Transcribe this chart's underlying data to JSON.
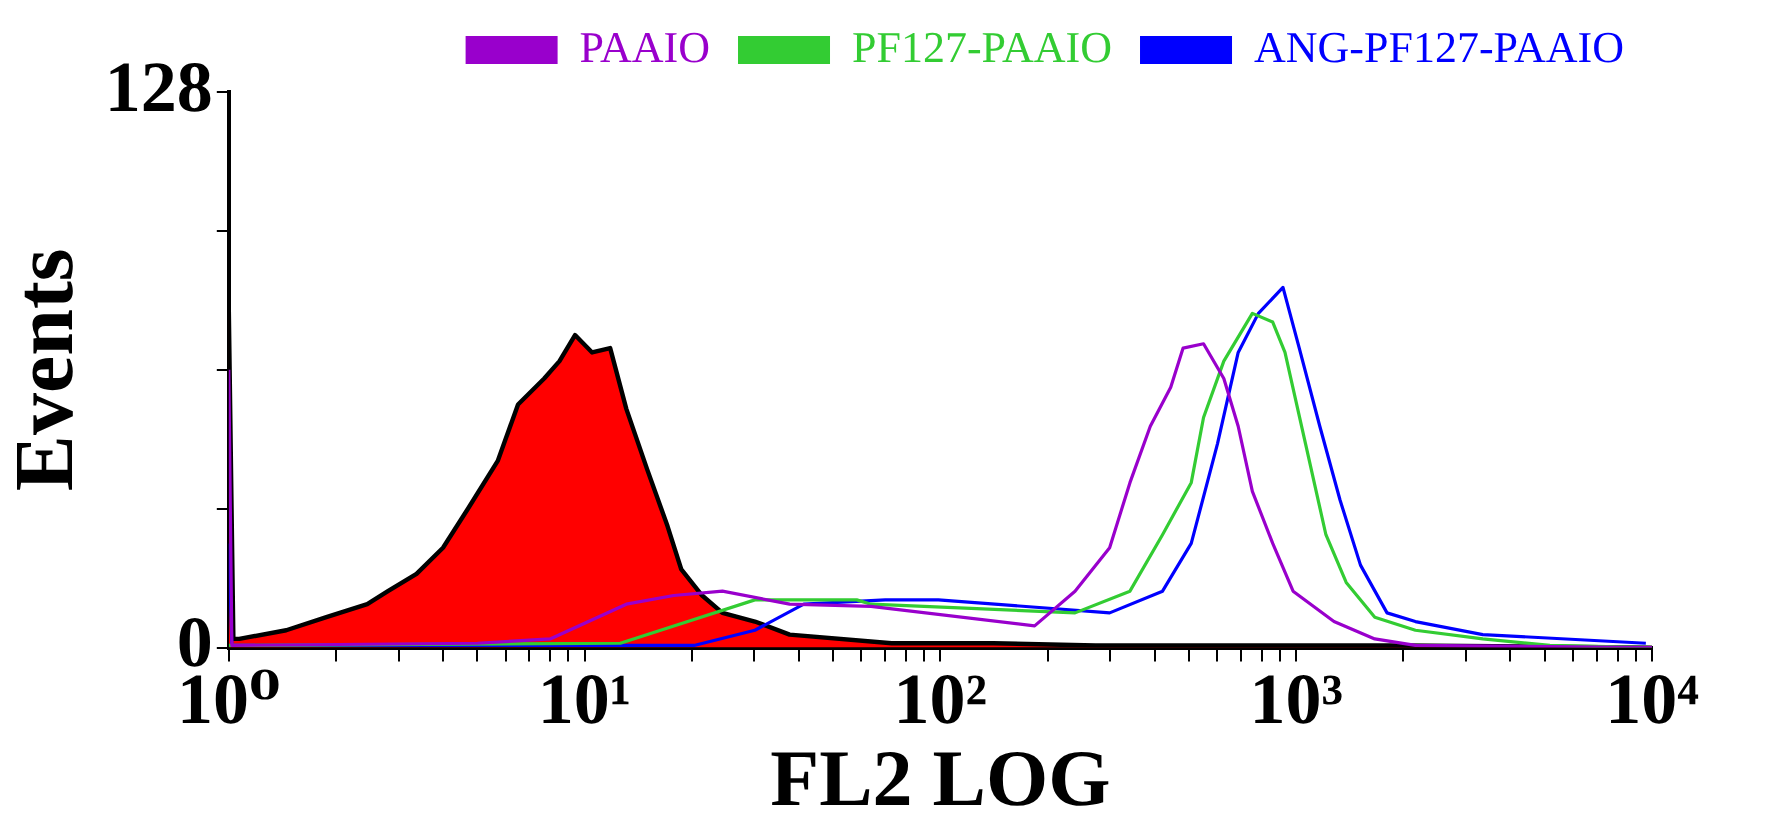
{
  "chart_data": {
    "type": "line",
    "xlabel": "FL2 LOG",
    "ylabel": "Events",
    "log": "x",
    "xlim": [
      1,
      10000
    ],
    "ylim": [
      0,
      128
    ],
    "xticks": [
      {
        "value": 1,
        "label": "10⁰"
      },
      {
        "value": 2,
        "label": null
      },
      {
        "value": 3,
        "label": null
      },
      {
        "value": 4,
        "label": null
      },
      {
        "value": 5,
        "label": null
      },
      {
        "value": 6,
        "label": null
      },
      {
        "value": 7,
        "label": null
      },
      {
        "value": 8,
        "label": null
      },
      {
        "value": 9,
        "label": null
      },
      {
        "value": 10,
        "label": "10¹"
      },
      {
        "value": 20,
        "label": null
      },
      {
        "value": 30,
        "label": null
      },
      {
        "value": 40,
        "label": null
      },
      {
        "value": 50,
        "label": null
      },
      {
        "value": 60,
        "label": null
      },
      {
        "value": 70,
        "label": null
      },
      {
        "value": 80,
        "label": null
      },
      {
        "value": 90,
        "label": null
      },
      {
        "value": 100,
        "label": "10²"
      },
      {
        "value": 200,
        "label": null
      },
      {
        "value": 300,
        "label": null
      },
      {
        "value": 400,
        "label": null
      },
      {
        "value": 500,
        "label": null
      },
      {
        "value": 600,
        "label": null
      },
      {
        "value": 700,
        "label": null
      },
      {
        "value": 800,
        "label": null
      },
      {
        "value": 900,
        "label": null
      },
      {
        "value": 1000,
        "label": "10³"
      },
      {
        "value": 2000,
        "label": null
      },
      {
        "value": 3000,
        "label": null
      },
      {
        "value": 4000,
        "label": null
      },
      {
        "value": 5000,
        "label": null
      },
      {
        "value": 6000,
        "label": null
      },
      {
        "value": 7000,
        "label": null
      },
      {
        "value": 8000,
        "label": null
      },
      {
        "value": 9000,
        "label": null
      },
      {
        "value": 10000,
        "label": "10⁴"
      }
    ],
    "yticks": [
      0,
      {
        "value": 32,
        "label": null
      },
      {
        "value": 64,
        "label": null
      },
      {
        "value": 96,
        "label": null
      },
      128
    ],
    "legend": "top right",
    "marker": "none",
    "line_style": "solid",
    "series": [
      {
        "type": "area",
        "color": "#ff0000",
        "x": [
          1,
          1.03,
          1.07,
          1.45,
          1.88,
          2.45,
          2.8,
          3.37,
          4.0,
          4.7,
          5.7,
          6.5,
          7.7,
          8.5,
          9.4,
          10.5,
          11.8,
          13.1,
          15.0,
          17.1,
          18.7,
          21.4,
          24.4,
          30.1,
          37.7,
          73,
          141,
          273,
          1973,
          10000
        ],
        "values": [
          78,
          2,
          2,
          4,
          7,
          10,
          13,
          17,
          23,
          32,
          43,
          56,
          62,
          66,
          72,
          68,
          69,
          55,
          41,
          28,
          18,
          12,
          8,
          6,
          3,
          1,
          1,
          0.5,
          0.5,
          0
        ]
      },
      {
        "name": "PAAIO",
        "color": "#9900cc",
        "x": [
          1,
          1.02,
          5,
          8.0,
          13.1,
          17.8,
          24.4,
          37.7,
          63.8,
          184,
          239,
          299,
          341,
          389,
          444,
          481,
          549,
          626,
          687,
          753,
          859,
          980,
          1277,
          1663,
          2163,
          10000
        ],
        "values": [
          64,
          0.5,
          1,
          2,
          10,
          12,
          13,
          10,
          9.5,
          5,
          13,
          23,
          38,
          51,
          60,
          69,
          70,
          62,
          51,
          36,
          24,
          13,
          6,
          2,
          0.5,
          0
        ]
      },
      {
        "name": "PF127-PAAIO",
        "color": "#33cc33",
        "x": [
          1,
          12.6,
          19.5,
          30.1,
          58.2,
          63.8,
          239,
          341,
          421,
          507,
          549,
          626,
          753,
          859,
          930,
          1062,
          1212,
          1382,
          1663,
          2163,
          3345,
          5165,
          10000
        ],
        "values": [
          0.5,
          1,
          6,
          11,
          11,
          10,
          8,
          13,
          26,
          38,
          53,
          66,
          77,
          75,
          68,
          47,
          26,
          15,
          7,
          4,
          2,
          0.5,
          0
        ]
      },
      {
        "name": "ANG-PF127-PAAIO",
        "color": "#0000ff",
        "x": [
          1,
          1.02,
          20.3,
          30.1,
          41.3,
          70.0,
          98.7,
          299,
          421,
          507,
          601,
          687,
          783,
          918,
          1020,
          1165,
          1328,
          1516,
          1800,
          2163,
          3345,
          9610
        ],
        "values": [
          24,
          0.5,
          0.5,
          4,
          10,
          11,
          11,
          8,
          13,
          24,
          47,
          68,
          77,
          83,
          69,
          51,
          34,
          19,
          8,
          6,
          3,
          1
        ]
      }
    ]
  }
}
